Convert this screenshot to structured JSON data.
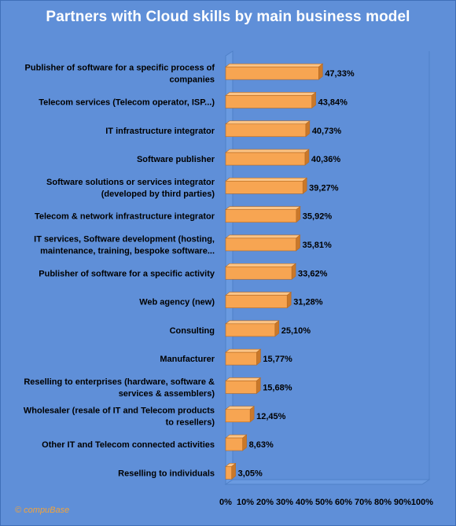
{
  "chart_data": {
    "type": "bar",
    "orientation": "horizontal",
    "title": "Partners with Cloud skills by main business model",
    "categories": [
      "Publisher of software for a specific process of companies",
      "Telecom services (Telecom operator, ISP...)",
      "IT infrastructure integrator",
      "Software publisher",
      "Software solutions or services integrator (developed by third parties)",
      "Telecom & network infrastructure integrator",
      "IT services, Software development (hosting, maintenance, training, bespoke software...",
      "Publisher of software for a specific activity",
      "Web agency (new)",
      "Consulting",
      "Manufacturer",
      "Reselling to enterprises (hardware, software & services & assemblers)",
      "Wholesaler (resale of IT and Telecom products to resellers)",
      "Other IT and Telecom connected activities",
      "Reselling to individuals"
    ],
    "category_lines": [
      [
        "Publisher of software for a specific process of",
        "companies"
      ],
      [
        "Telecom services (Telecom operator, ISP...)"
      ],
      [
        "IT infrastructure integrator"
      ],
      [
        "Software publisher"
      ],
      [
        "Software solutions or services integrator",
        "(developed by third parties)"
      ],
      [
        "Telecom & network infrastructure integrator"
      ],
      [
        "IT services, Software development (hosting,",
        "maintenance, training, bespoke software..."
      ],
      [
        "Publisher of software for a specific activity"
      ],
      [
        "Web agency (new)"
      ],
      [
        "Consulting"
      ],
      [
        "Manufacturer"
      ],
      [
        "Reselling to enterprises (hardware, software &",
        "services & assemblers)"
      ],
      [
        "Wholesaler (resale of IT and Telecom products",
        "to resellers)"
      ],
      [
        "Other IT and Telecom connected activities"
      ],
      [
        "Reselling to individuals"
      ]
    ],
    "values": [
      47.33,
      43.84,
      40.73,
      40.36,
      39.27,
      35.92,
      35.81,
      33.62,
      31.28,
      25.1,
      15.77,
      15.68,
      12.45,
      8.63,
      3.05
    ],
    "value_labels": [
      "47,33%",
      "43,84%",
      "40,73%",
      "40,36%",
      "39,27%",
      "35,92%",
      "35,81%",
      "33,62%",
      "31,28%",
      "25,10%",
      "15,77%",
      "15,68%",
      "12,45%",
      "8,63%",
      "3,05%"
    ],
    "xlim": [
      0,
      100
    ],
    "x_ticks": [
      "0%",
      "10%",
      "20%",
      "30%",
      "40%",
      "50%",
      "60%",
      "70%",
      "80%",
      "90%",
      "100%"
    ],
    "grid": false,
    "legend": "none",
    "colors": {
      "background": "#5f8fd8",
      "bar_front": "#f7a552",
      "bar_top": "#fbc486",
      "bar_side": "#c9782a",
      "plot_floor": "#6a9ae0",
      "title_text": "#ffffff",
      "credit_text": "#f2a33a"
    }
  },
  "credit": "© compuBase"
}
